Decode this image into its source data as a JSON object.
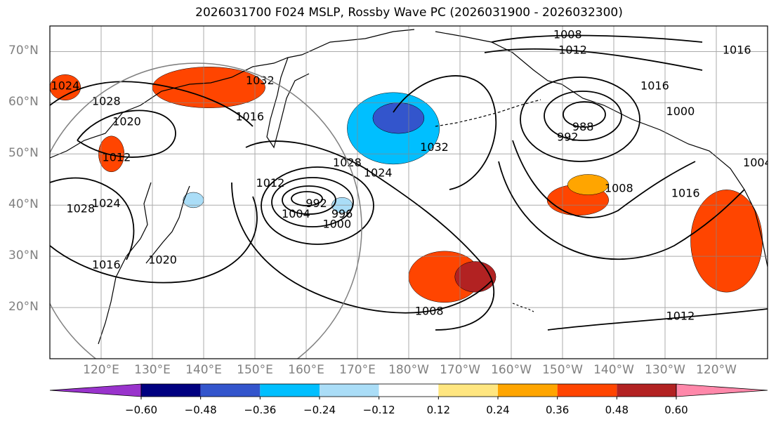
{
  "title": "2026031700 F024 MSLP, Rossby Wave PC (2026031900 - 2026032300)",
  "map": {
    "projection": "PlateCarree (Pacific-centred)",
    "lon_range": [
      110,
      250
    ],
    "lat_range": [
      10,
      75
    ],
    "lat_ticks": [
      {
        "value": 70,
        "label": "70°N"
      },
      {
        "value": 60,
        "label": "60°N"
      },
      {
        "value": 50,
        "label": "50°N"
      },
      {
        "value": 40,
        "label": "40°N"
      },
      {
        "value": 30,
        "label": "30°N"
      },
      {
        "value": 20,
        "label": "20°N"
      }
    ],
    "lon_ticks": [
      {
        "value": 120,
        "label": "120°E"
      },
      {
        "value": 130,
        "label": "130°E"
      },
      {
        "value": 140,
        "label": "140°E"
      },
      {
        "value": 150,
        "label": "150°E"
      },
      {
        "value": 160,
        "label": "160°E"
      },
      {
        "value": 170,
        "label": "170°E"
      },
      {
        "value": 180,
        "label": "180°W"
      },
      {
        "value": 190,
        "label": "170°W"
      },
      {
        "value": 200,
        "label": "160°W"
      },
      {
        "value": 210,
        "label": "150°W"
      },
      {
        "value": 220,
        "label": "140°W"
      },
      {
        "value": 230,
        "label": "130°W"
      },
      {
        "value": 240,
        "label": "120°W"
      }
    ],
    "isobar_labels": [
      {
        "text": "1008",
        "lon": 211,
        "lat": 73
      },
      {
        "text": "1012",
        "lon": 212,
        "lat": 70
      },
      {
        "text": "1016",
        "lon": 244,
        "lat": 70
      },
      {
        "text": "1016",
        "lon": 228,
        "lat": 63
      },
      {
        "text": "1000",
        "lon": 233,
        "lat": 58
      },
      {
        "text": "992",
        "lon": 211,
        "lat": 53
      },
      {
        "text": "988",
        "lon": 214,
        "lat": 55
      },
      {
        "text": "1004",
        "lon": 248,
        "lat": 48
      },
      {
        "text": "1008",
        "lon": 221,
        "lat": 43
      },
      {
        "text": "1016",
        "lon": 234,
        "lat": 42
      },
      {
        "text": "1012",
        "lon": 233,
        "lat": 18
      },
      {
        "text": "1008",
        "lon": 184,
        "lat": 19
      },
      {
        "text": "1032",
        "lon": 151,
        "lat": 64
      },
      {
        "text": "1016",
        "lon": 149,
        "lat": 57
      },
      {
        "text": "1028",
        "lon": 121,
        "lat": 60
      },
      {
        "text": "1020",
        "lon": 125,
        "lat": 56
      },
      {
        "text": "1012",
        "lon": 123,
        "lat": 49
      },
      {
        "text": "1024",
        "lon": 113,
        "lat": 63
      },
      {
        "text": "1028",
        "lon": 116,
        "lat": 39
      },
      {
        "text": "1024",
        "lon": 121,
        "lat": 40
      },
      {
        "text": "1016",
        "lon": 121,
        "lat": 28
      },
      {
        "text": "1020",
        "lon": 132,
        "lat": 29
      },
      {
        "text": "1012",
        "lon": 153,
        "lat": 44
      },
      {
        "text": "1004",
        "lon": 158,
        "lat": 38
      },
      {
        "text": "992",
        "lon": 162,
        "lat": 40
      },
      {
        "text": "996",
        "lon": 167,
        "lat": 38
      },
      {
        "text": "1000",
        "lon": 166,
        "lat": 36
      },
      {
        "text": "1028",
        "lon": 168,
        "lat": 48
      },
      {
        "text": "1024",
        "lon": 174,
        "lat": 46
      },
      {
        "text": "1032",
        "lon": 185,
        "lat": 51
      }
    ],
    "pc_regions": [
      {
        "lon": 187,
        "lat": 26,
        "rx": 7,
        "ry": 5,
        "value": 0.36
      },
      {
        "lon": 193,
        "lat": 26,
        "rx": 4,
        "ry": 3,
        "value": 0.48
      },
      {
        "lon": 213,
        "lat": 41,
        "rx": 6,
        "ry": 3,
        "value": 0.36
      },
      {
        "lon": 215,
        "lat": 44,
        "rx": 4,
        "ry": 2,
        "value": 0.24
      },
      {
        "lon": 242,
        "lat": 33,
        "rx": 7,
        "ry": 10,
        "value": 0.36
      },
      {
        "lon": 141,
        "lat": 63,
        "rx": 11,
        "ry": 4,
        "value": 0.36
      },
      {
        "lon": 122,
        "lat": 50,
        "rx": 2.5,
        "ry": 3.5,
        "value": 0.36
      },
      {
        "lon": 113,
        "lat": 63,
        "rx": 3,
        "ry": 2.5,
        "value": 0.36
      },
      {
        "lon": 177,
        "lat": 55,
        "rx": 9,
        "ry": 7,
        "value": -0.36
      },
      {
        "lon": 178,
        "lat": 57,
        "rx": 5,
        "ry": 3,
        "value": -0.48
      },
      {
        "lon": 138,
        "lat": 41,
        "rx": 2,
        "ry": 1.5,
        "value": -0.24
      },
      {
        "lon": 167,
        "lat": 40,
        "rx": 2,
        "ry": 1.5,
        "value": -0.24
      }
    ]
  },
  "colorbar": {
    "colors": [
      "#9933cc",
      "#000080",
      "#3355cc",
      "#00bfff",
      "#aaddf7",
      "#ffffff",
      "#ffe680",
      "#ffa500",
      "#ff4500",
      "#b22222",
      "#ff88aa"
    ],
    "ticks": [
      "−0.60",
      "−0.48",
      "−0.36",
      "−0.24",
      "−0.12",
      "0.12",
      "0.24",
      "0.36",
      "0.48",
      "0.60"
    ]
  }
}
